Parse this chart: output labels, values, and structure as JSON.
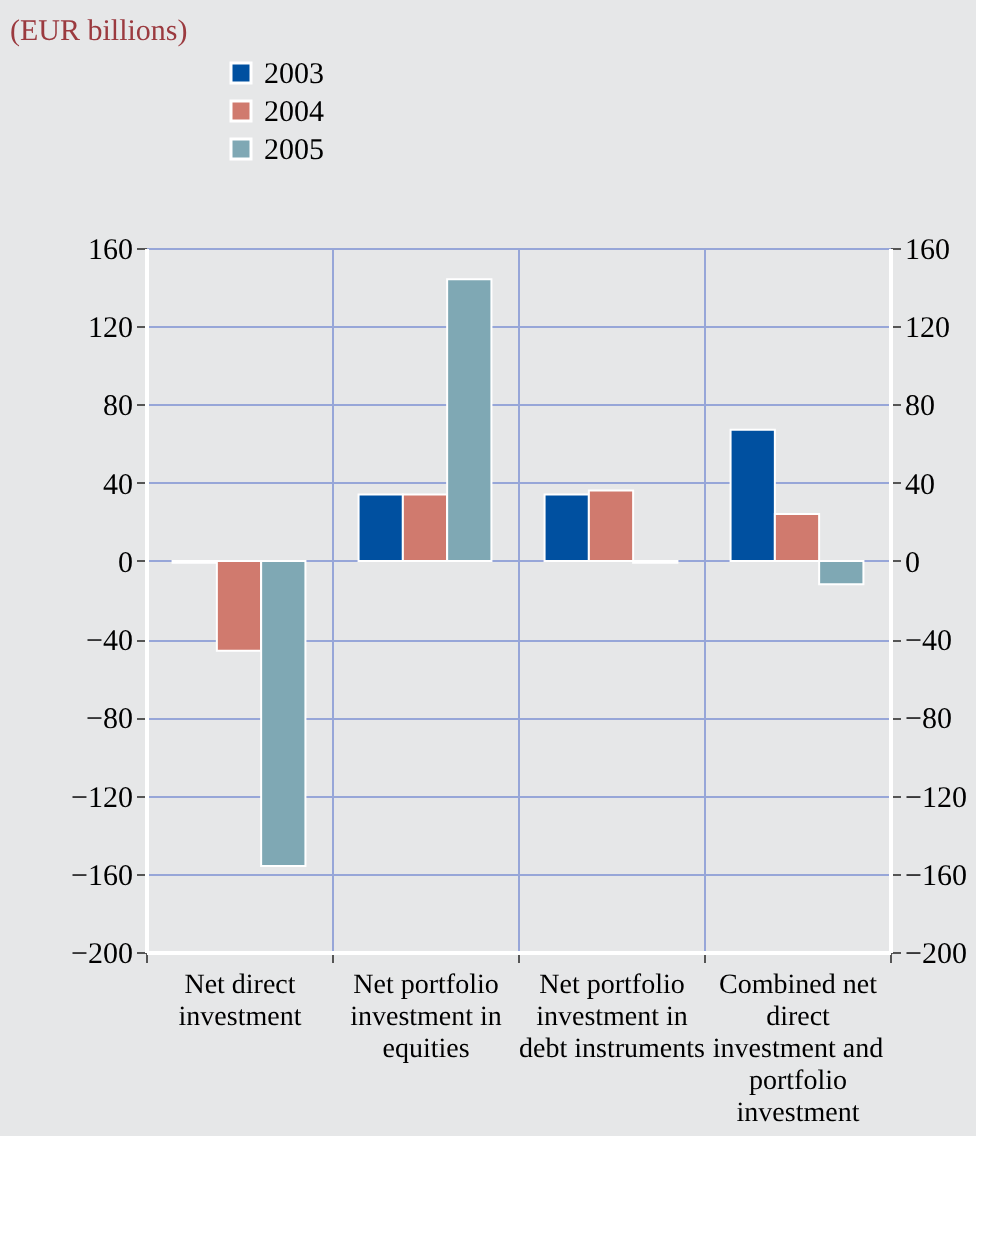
{
  "chart_data": {
    "type": "bar",
    "title": "(EUR billions)",
    "categories": [
      "Net direct investment",
      "Net portfolio investment in equities",
      "Net portfolio investment in debt instruments",
      "Combined net direct investment and portfolio investment"
    ],
    "series": [
      {
        "name": "2003",
        "color": "#0050a0",
        "values": [
          -1,
          34,
          34,
          67
        ]
      },
      {
        "name": "2004",
        "color": "#d07a6e",
        "values": [
          -46,
          34,
          36,
          24
        ]
      },
      {
        "name": "2005",
        "color": "#7fa8b4",
        "values": [
          -156,
          144,
          -1,
          -12
        ]
      }
    ],
    "ylim": [
      -200,
      160
    ],
    "yticks": [
      -200,
      -160,
      -120,
      -80,
      -40,
      0,
      40,
      80,
      120,
      160
    ],
    "y2lim": [
      -200,
      160
    ],
    "y2ticks": [
      -200,
      -160,
      -120,
      -80,
      -40,
      0,
      40,
      80,
      120,
      160
    ],
    "grid": true,
    "legend": "top left"
  }
}
